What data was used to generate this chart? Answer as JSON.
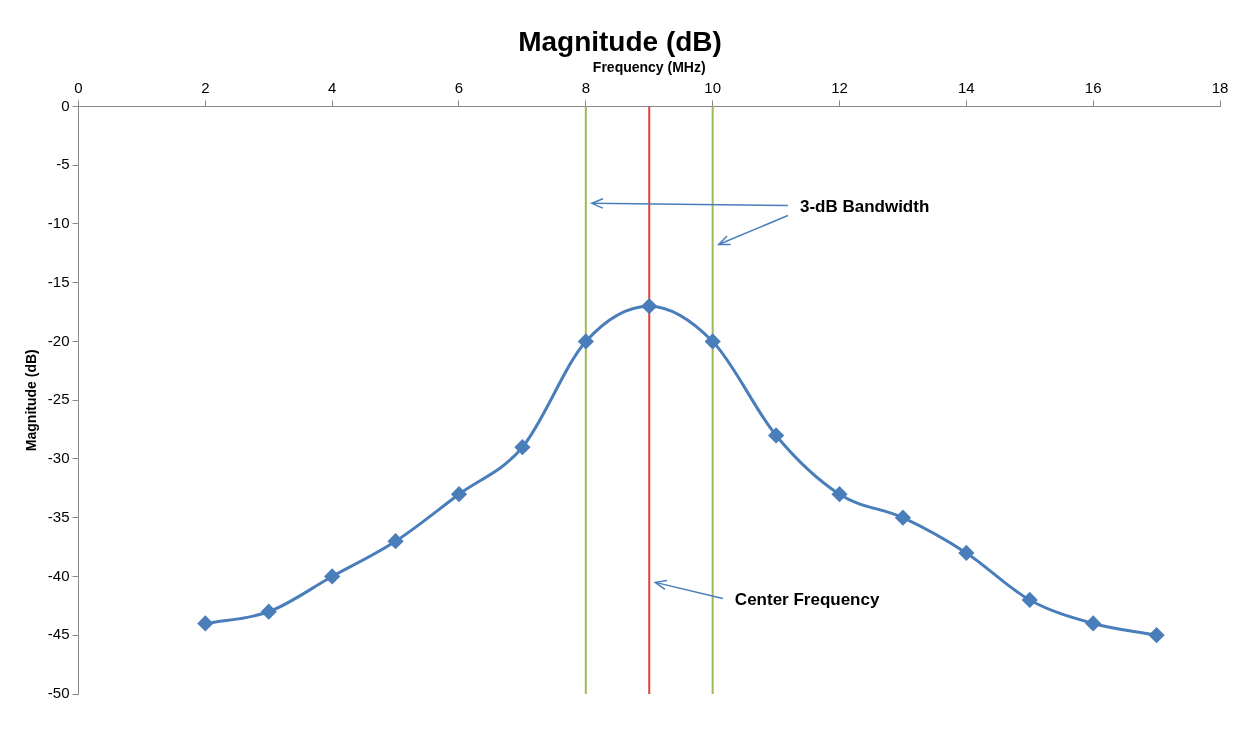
{
  "chart_data": {
    "type": "line",
    "title": "Magnitude (dB)",
    "xlabel": "Frequency (MHz)",
    "ylabel": "Magnitude (dB)",
    "x": [
      2,
      3,
      4,
      5,
      6,
      7,
      8,
      9,
      10,
      11,
      12,
      13,
      14,
      15,
      16,
      17
    ],
    "series": [
      {
        "color": "#4a7ebb",
        "values": [
          -44,
          -43,
          -40,
          -37,
          -33,
          -29,
          -20,
          -17,
          -20,
          -28,
          -33,
          -35,
          -38,
          -42,
          -44,
          -45
        ]
      }
    ],
    "xlim": [
      0,
      18
    ],
    "xticks": [
      0,
      2,
      4,
      6,
      8,
      10,
      12,
      14,
      16,
      18
    ],
    "ylim": [
      -50,
      0
    ],
    "yticks": [
      -50,
      -45,
      -40,
      -35,
      -30,
      -25,
      -20,
      -15,
      -10,
      -5,
      0
    ],
    "grid": false,
    "legend": false,
    "marker": "diamond",
    "line_style": "solid",
    "ref_lines": [
      {
        "axis": "x",
        "value": 8,
        "color": "#9bbb59"
      },
      {
        "axis": "x",
        "value": 9,
        "color": "#e0403a"
      },
      {
        "axis": "x",
        "value": 10,
        "color": "#9bbb59"
      }
    ],
    "annotations": [
      "3-dB Bandwidth",
      "Center Frequency"
    ]
  }
}
